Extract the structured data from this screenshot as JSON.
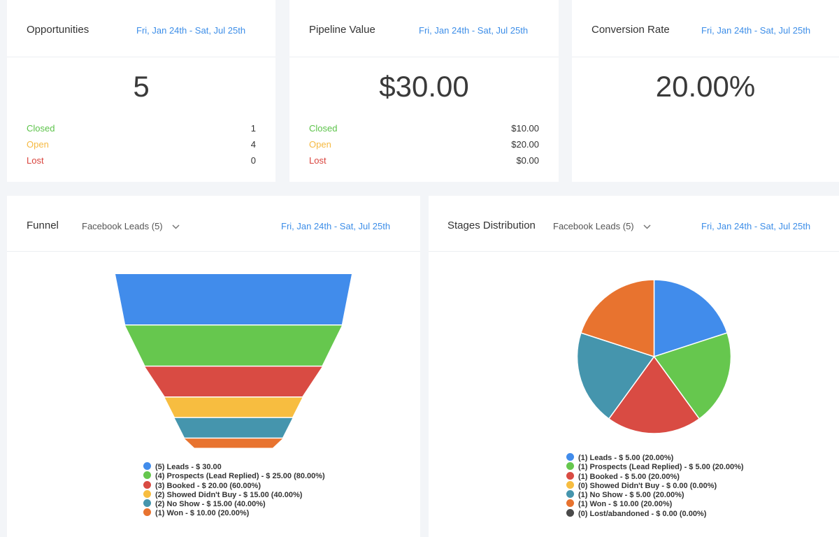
{
  "cards": {
    "opportunities": {
      "title": "Opportunities",
      "date": "Fri, Jan 24th - Sat, Jul 25th",
      "value": "5",
      "rows": [
        {
          "label": "Closed",
          "value": "1"
        },
        {
          "label": "Open",
          "value": "4"
        },
        {
          "label": "Lost",
          "value": "0"
        }
      ]
    },
    "pipeline": {
      "title": "Pipeline Value",
      "date": "Fri, Jan 24th - Sat, Jul 25th",
      "value": "$30.00",
      "rows": [
        {
          "label": "Closed",
          "value": "$10.00"
        },
        {
          "label": "Open",
          "value": "$20.00"
        },
        {
          "label": "Lost",
          "value": "$0.00"
        }
      ]
    },
    "conversion": {
      "title": "Conversion Rate",
      "date": "Fri, Jan 24th - Sat, Jul 25th",
      "value": "20.00%"
    }
  },
  "colors": {
    "accent": "#3d8ee8",
    "closed": "#5cc34a",
    "open": "#f5b941",
    "lost": "#d9443d"
  },
  "funnel": {
    "title": "Funnel",
    "dropdown": "Facebook Leads (5)",
    "dropdown_icon": "chevron-down-icon",
    "date": "Fri, Jan 24th - Sat, Jul 25th",
    "chart_data": {
      "type": "funnel",
      "stages": [
        {
          "label": "(5) Leads - $ 30.00",
          "count": 5,
          "color": "#418ceb"
        },
        {
          "label": "(4) Prospects (Lead Replied) - $ 25.00 (80.00%)",
          "count": 4,
          "color": "#66c74e"
        },
        {
          "label": "(3) Booked - $ 20.00 (60.00%)",
          "count": 3,
          "color": "#d94b43"
        },
        {
          "label": "(2) Showed Didn't Buy - $ 15.00 (40.00%)",
          "count": 2,
          "color": "#f7bd40"
        },
        {
          "label": "(2) No Show - $ 15.00 (40.00%)",
          "count": 2,
          "color": "#4595ad"
        },
        {
          "label": "(1) Won - $ 10.00 (20.00%)",
          "count": 1,
          "color": "#e8732f"
        }
      ]
    }
  },
  "stages": {
    "title": "Stages Distribution",
    "dropdown": "Facebook Leads (5)",
    "dropdown_icon": "chevron-down-icon",
    "date": "Fri, Jan 24th - Sat, Jul 25th",
    "chart_data": {
      "type": "pie",
      "slices": [
        {
          "label": "(1) Leads - $ 5.00 (20.00%)",
          "value": 20,
          "color": "#418ceb"
        },
        {
          "label": "(1) Prospects (Lead Replied) - $ 5.00 (20.00%)",
          "value": 20,
          "color": "#66c74e"
        },
        {
          "label": "(1) Booked - $ 5.00 (20.00%)",
          "value": 20,
          "color": "#d94b43"
        },
        {
          "label": "(0) Showed Didn't Buy - $ 0.00 (0.00%)",
          "value": 0,
          "color": "#f7bd40"
        },
        {
          "label": "(1) No Show - $ 5.00 (20.00%)",
          "value": 20,
          "color": "#4595ad"
        },
        {
          "label": "(1) Won - $ 10.00 (20.00%)",
          "value": 20,
          "color": "#e8732f"
        },
        {
          "label": "(0) Lost/abandoned - $ 0.00 (0.00%)",
          "value": 0,
          "color": "#4a4a4a"
        }
      ]
    }
  }
}
